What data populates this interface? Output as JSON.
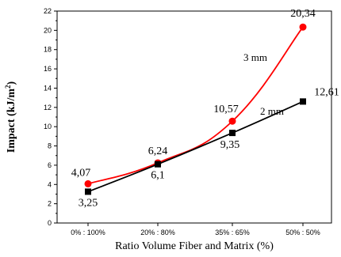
{
  "chart_data": {
    "type": "line",
    "categories": [
      "0% : 100%",
      "20% : 80%",
      "35% : 65%",
      "50% : 50%"
    ],
    "xlabel": "Ratio Volume Fiber and Matrix (%)",
    "ylabel_main": "Impact (kJ/m",
    "ylabel_sup": "2",
    "ylabel_close": ")",
    "ylim": [
      0,
      22
    ],
    "yticks": [
      0,
      2,
      4,
      6,
      8,
      10,
      12,
      14,
      16,
      18,
      20,
      22
    ],
    "ytick_labels": [
      "0",
      "2",
      "4",
      "6",
      "8",
      "10",
      "12",
      "14",
      "16",
      "18",
      "20",
      "22"
    ],
    "grid": false,
    "series": [
      {
        "name": "3 mm",
        "marker": "circle",
        "color": "#ff0000",
        "values": [
          4.07,
          6.24,
          10.57,
          20.34
        ],
        "labels": [
          "4,07",
          "6,24",
          "10,57",
          "20,34"
        ]
      },
      {
        "name": "2 mm",
        "marker": "square",
        "color": "#000000",
        "values": [
          3.25,
          6.1,
          9.35,
          12.61
        ],
        "labels": [
          "3,25",
          "6,1",
          "9,35",
          "12,61"
        ]
      }
    ]
  }
}
